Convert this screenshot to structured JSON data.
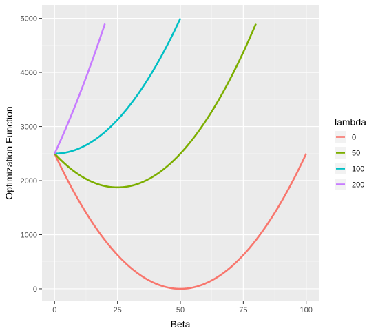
{
  "chart_data": {
    "type": "line",
    "title": "",
    "xlabel": "Beta",
    "ylabel": "Optimization Function",
    "xlim": [
      -5,
      105
    ],
    "ylim": [
      -230,
      5250
    ],
    "x_ticks": [
      0,
      25,
      50,
      75,
      100
    ],
    "x_tick_labels": [
      "0",
      "25",
      "50",
      "75",
      "100"
    ],
    "y_ticks": [
      0,
      1000,
      2000,
      3000,
      4000,
      5000
    ],
    "y_tick_labels": [
      "0",
      "1000",
      "2000",
      "3000",
      "4000",
      "5000"
    ],
    "grid": true,
    "legend": {
      "title": "lambda",
      "placement": "right"
    },
    "series": [
      {
        "name": "0",
        "color": "#F8766D",
        "x": [
          0,
          10,
          20,
          30,
          40,
          50,
          60,
          70,
          80,
          90,
          100
        ],
        "y": [
          2500,
          1600,
          900,
          400,
          100,
          0,
          100,
          400,
          900,
          1600,
          2500
        ]
      },
      {
        "name": "50",
        "color": "#7CAE00",
        "x": [
          0,
          10,
          20,
          25,
          30,
          40,
          50,
          60,
          70,
          80
        ],
        "y": [
          2500,
          2100,
          1900,
          1875,
          1900,
          2100,
          2500,
          3100,
          3900,
          4900
        ]
      },
      {
        "name": "100",
        "color": "#00BFC4",
        "x": [
          0,
          10,
          20,
          30,
          40,
          50
        ],
        "y": [
          2500,
          2600,
          2900,
          3400,
          4100,
          5000
        ]
      },
      {
        "name": "200",
        "color": "#C77CFF",
        "x": [
          0,
          5,
          10,
          15,
          20
        ],
        "y": [
          2500,
          3025,
          3600,
          4225,
          4900
        ]
      }
    ]
  },
  "colors": {
    "panel_background": "#EBEBEB",
    "major_grid": "#FFFFFF",
    "minor_grid": "#F4F4F4",
    "legend_key_background": "#F2F2F2"
  }
}
